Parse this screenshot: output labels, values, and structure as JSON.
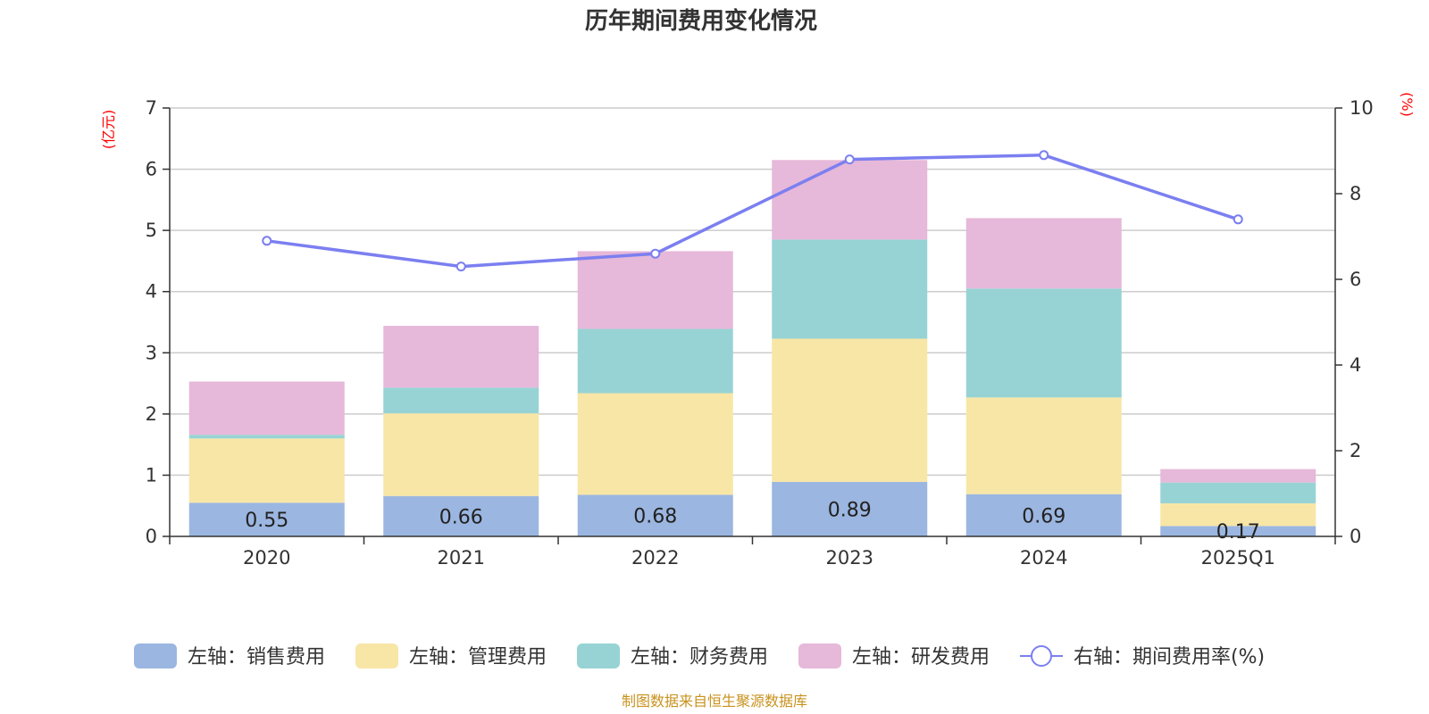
{
  "chart_data": {
    "type": "bar",
    "stacked": true,
    "title": "历年期间费用变化情况",
    "categories": [
      "2020",
      "2021",
      "2022",
      "2023",
      "2024",
      "2025Q1"
    ],
    "left_axis": {
      "unit": "(亿元)",
      "ylim": [
        0,
        7
      ],
      "ticks": [
        "0",
        "1",
        "2",
        "3",
        "4",
        "5",
        "6",
        "7"
      ]
    },
    "right_axis": {
      "unit": "(%)",
      "ylim": [
        0,
        10
      ],
      "ticks": [
        "0",
        "2",
        "4",
        "6",
        "8",
        "10"
      ]
    },
    "series": [
      {
        "name": "左轴：销售费用",
        "color": "#9bb6e0",
        "values": [
          0.55,
          0.66,
          0.68,
          0.89,
          0.69,
          0.17
        ],
        "labels": [
          "0.55",
          "0.66",
          "0.68",
          "0.89",
          "0.69",
          "0.17"
        ]
      },
      {
        "name": "左轴：管理费用",
        "color": "#f8e6a6",
        "values": [
          1.05,
          1.35,
          1.66,
          2.34,
          1.58,
          0.37
        ]
      },
      {
        "name": "左轴：财务费用",
        "color": "#97d3d4",
        "values": [
          0.06,
          0.42,
          1.05,
          1.62,
          1.78,
          0.34
        ]
      },
      {
        "name": "左轴：研发费用",
        "color": "#e6b8d9",
        "values": [
          0.87,
          1.01,
          1.27,
          1.3,
          1.15,
          0.22
        ]
      }
    ],
    "line": {
      "name": "右轴：期间费用率(%)",
      "color": "#7b7ff0",
      "values": [
        6.9,
        6.3,
        6.6,
        8.8,
        8.9,
        7.4
      ]
    },
    "source": "制图数据来自恒生聚源数据库"
  }
}
